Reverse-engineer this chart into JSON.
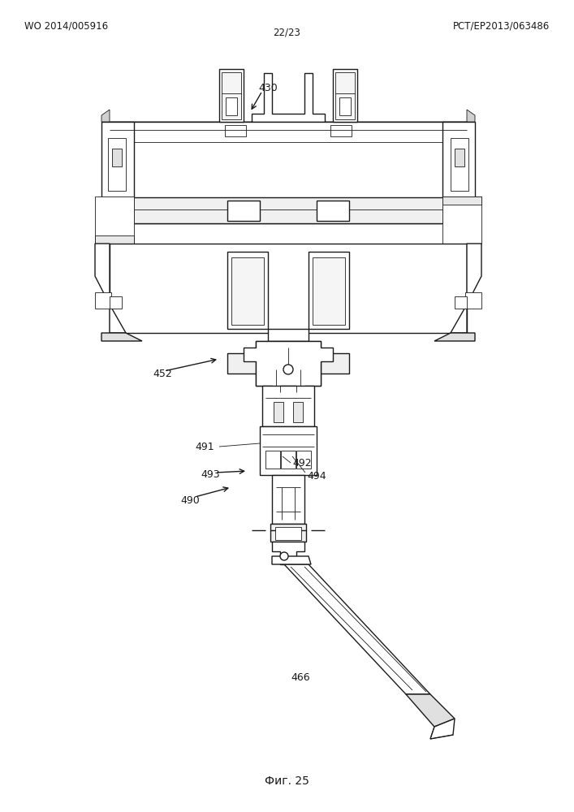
{
  "header_left": "WO 2014/005916",
  "header_right": "PCT/EP2013/063486",
  "header_center": "22/23",
  "footer": "Фиг. 25",
  "background_color": "#ffffff",
  "line_color": "#1a1a1a",
  "label_430": "430",
  "label_452": "452",
  "label_491": "491",
  "label_492": "492",
  "label_493": "493",
  "label_494": "494",
  "label_490": "490",
  "label_466": "466",
  "font_size_header": 8.5,
  "font_size_label": 9,
  "font_size_footer": 10
}
